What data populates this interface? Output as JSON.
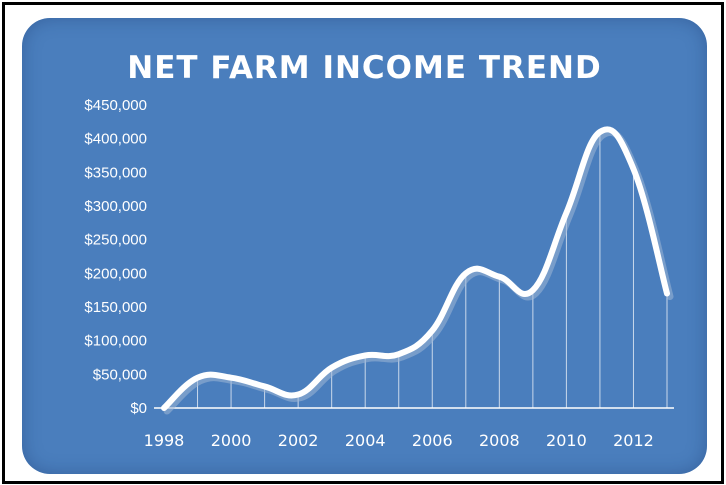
{
  "chart_data": {
    "type": "line",
    "title": "NET FARM INCOME TREND",
    "xlabel": "",
    "ylabel": "",
    "x": [
      1998,
      1999,
      2000,
      2001,
      2002,
      2003,
      2004,
      2005,
      2006,
      2007,
      2008,
      2009,
      2010,
      2011,
      2012,
      2013
    ],
    "values": [
      0,
      45000,
      45000,
      32000,
      20000,
      60000,
      78000,
      80000,
      115000,
      200000,
      195000,
      175000,
      290000,
      410000,
      355000,
      170000
    ],
    "x_ticks": [
      "1998",
      "2000",
      "2002",
      "2004",
      "2006",
      "2008",
      "2010",
      "2012"
    ],
    "y_ticks": [
      "$0",
      "$50,000",
      "$100,000",
      "$150,000",
      "$200,000",
      "$250,000",
      "$300,000",
      "$350,000",
      "$400,000",
      "$450,000"
    ],
    "ylim": [
      0,
      450000
    ],
    "xlim": [
      1998,
      2013
    ],
    "smooth": true,
    "drop_lines": true,
    "grid": false
  },
  "colors": {
    "background": "#4a7ebd",
    "line": "#ffffff",
    "line_shadow": "#9fb6d6",
    "text": "#ffffff"
  }
}
